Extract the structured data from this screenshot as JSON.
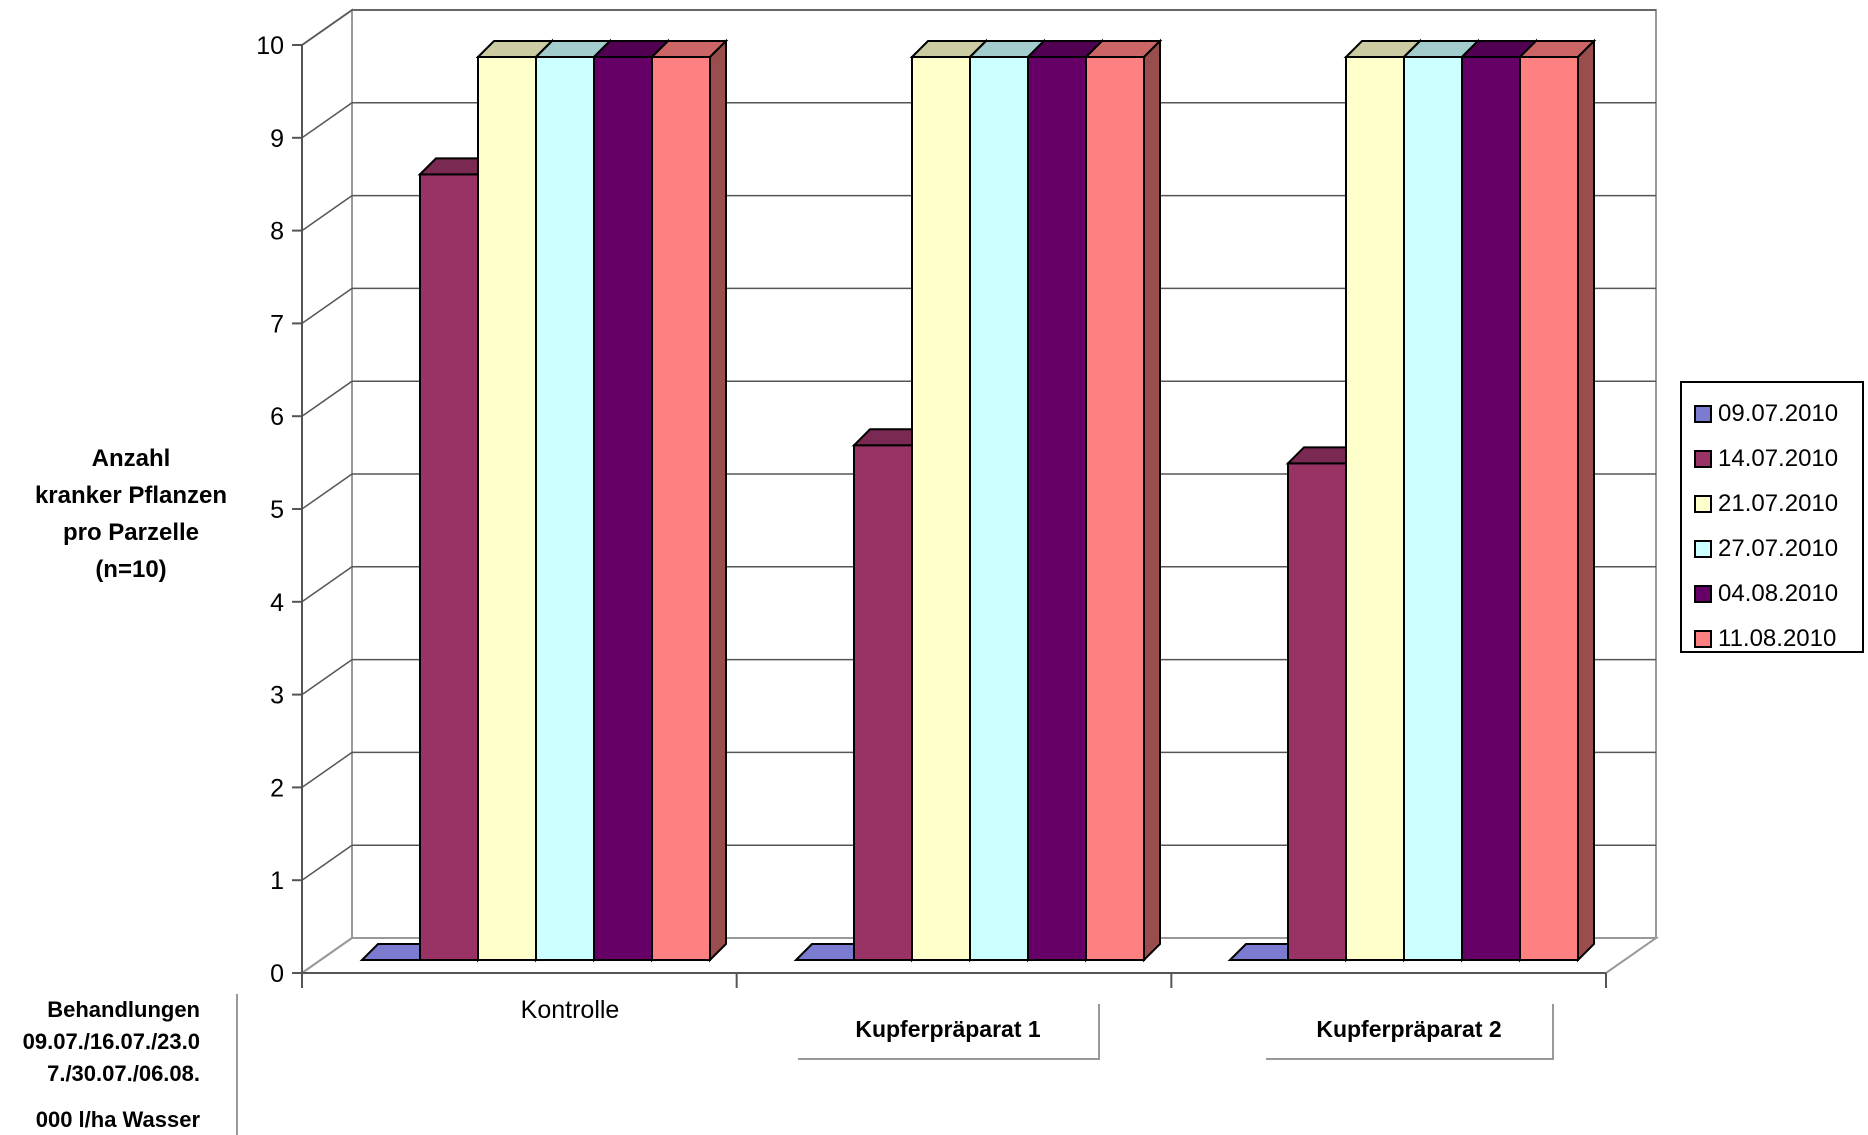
{
  "chart_data": {
    "type": "bar",
    "three_d": true,
    "categories": [
      "Kontrolle",
      "Kupferpräparat 1",
      "Kupferpräparat 2"
    ],
    "series": [
      {
        "name": "09.07.2010",
        "color": "#7b7bd0",
        "values": [
          0,
          0,
          0
        ]
      },
      {
        "name": "14.07.2010",
        "color": "#993366",
        "values": [
          8.7,
          5.7,
          5.5
        ]
      },
      {
        "name": "21.07.2010",
        "color": "#ffffcc",
        "values": [
          10,
          10,
          10
        ]
      },
      {
        "name": "27.07.2010",
        "color": "#ccffff",
        "values": [
          10,
          10,
          10
        ]
      },
      {
        "name": "04.08.2010",
        "color": "#660066",
        "values": [
          10,
          10,
          10
        ]
      },
      {
        "name": "11.08.2010",
        "color": "#ff8080",
        "values": [
          10,
          10,
          10
        ]
      }
    ],
    "yticks": [
      "0",
      "1",
      "2",
      "3",
      "4",
      "5",
      "6",
      "7",
      "8",
      "9",
      "10"
    ],
    "ylim": [
      0,
      10
    ],
    "ylabel": [
      "Anzahl",
      "kranker Pflanzen",
      "pro Parzelle",
      "(n=10)"
    ],
    "grid": true,
    "legend_position": "right"
  },
  "note": {
    "line1": "Behandlungen",
    "line2": "09.07./16.07./23.0",
    "line3": "7./30.07./06.08.",
    "line4": "000 l/ha Wasser"
  }
}
